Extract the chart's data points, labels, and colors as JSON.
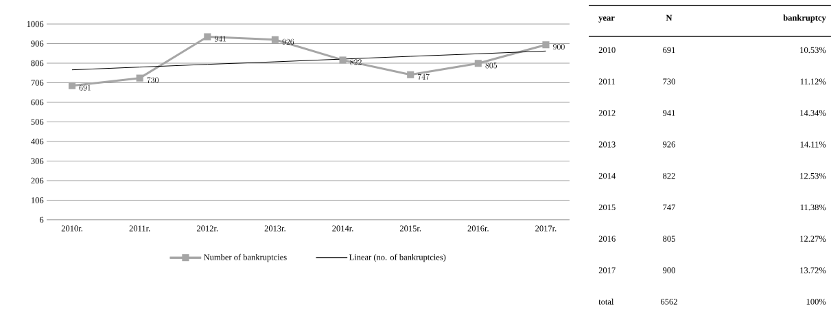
{
  "chart_data": [
    {
      "type": "line",
      "categories": [
        "2010r.",
        "2011r.",
        "2012r.",
        "2013r.",
        "2014r.",
        "2015r.",
        "2016r.",
        "2017r."
      ],
      "series": [
        {
          "name": "Number of bankruptcies",
          "color": "#a6a6a6",
          "marker": "square",
          "data_labels": true,
          "values": [
            691,
            730,
            941,
            926,
            822,
            747,
            805,
            900
          ]
        },
        {
          "name": "Linear (no. of bankruptcies)",
          "color": "#000000",
          "marker": "none",
          "values": [
            772,
            786,
            800,
            813,
            827,
            841,
            854,
            868
          ]
        }
      ],
      "ylim": [
        6,
        1006
      ],
      "yticks": [
        6,
        106,
        206,
        306,
        406,
        506,
        606,
        706,
        806,
        906,
        1006
      ],
      "grid": "y",
      "legend": "bottom"
    },
    {
      "type": "heatmap",
      "ylabel": "year",
      "categories": [
        "N",
        "bankruptcy"
      ],
      "y_categories": [
        "2010",
        "2011",
        "2012",
        "2013",
        "2014",
        "2015",
        "2016",
        "2017",
        "total"
      ],
      "cells": [
        [
          null,
          null
        ],
        [
          null,
          null
        ],
        [
          null,
          null
        ],
        [
          null,
          null
        ],
        [
          null,
          null
        ],
        [
          null,
          null
        ],
        [
          null,
          null
        ],
        [
          null,
          null
        ],
        [
          null,
          null
        ]
      ],
      "cell_labels": [
        [
          "691",
          "10.53%"
        ],
        [
          "730",
          "11.12%"
        ],
        [
          "941",
          "14.34%"
        ],
        [
          "926",
          "14.11%"
        ],
        [
          "822",
          "12.53%"
        ],
        [
          "747",
          "11.38%"
        ],
        [
          "805",
          "12.27%"
        ],
        [
          "900",
          "13.72%"
        ],
        [
          "6562",
          "100%"
        ]
      ]
    }
  ]
}
